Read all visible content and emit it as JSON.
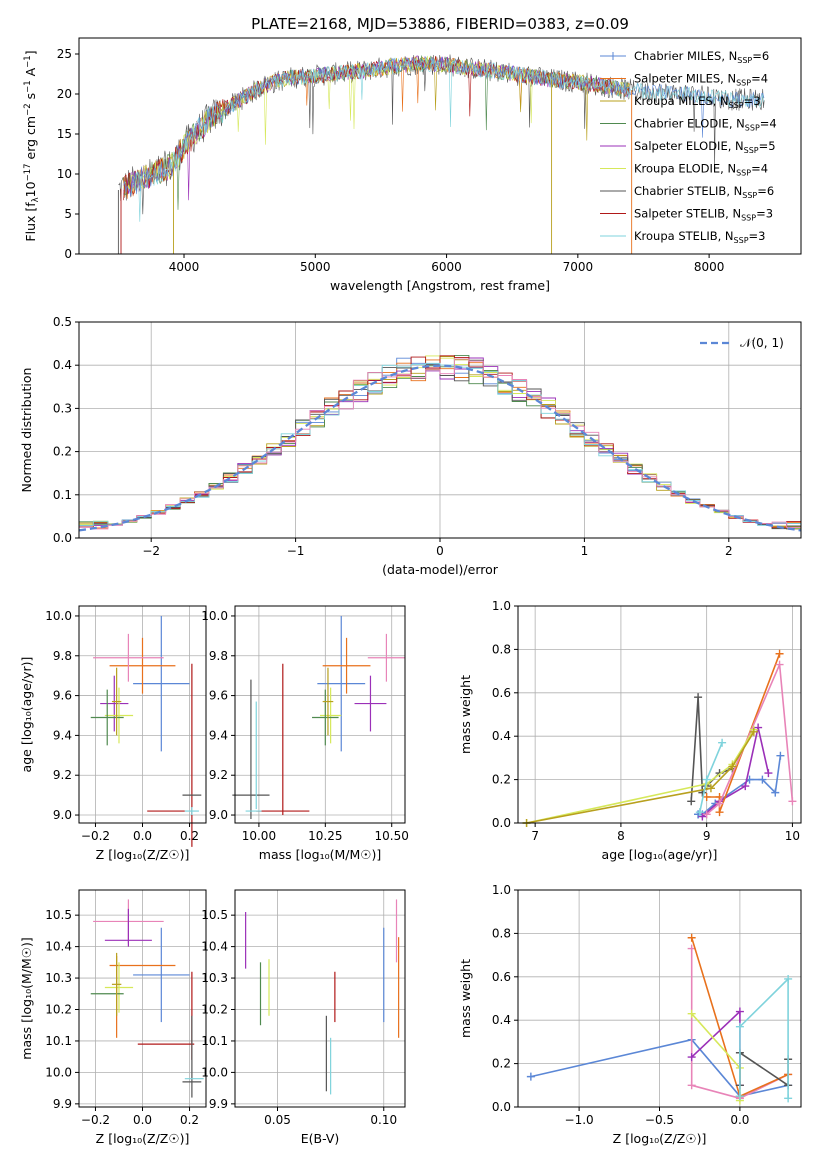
{
  "colors": {
    "Chabrier MILES": "#5b87d6",
    "Salpeter MILES": "#e8711c",
    "Kroupa MILES": "#b8a01e",
    "Chabrier ELODIE": "#4f8a4f",
    "Salpeter ELODIE": "#9b30b8",
    "Kroupa ELODIE": "#d6e85a",
    "Chabrier STELIB": "#555555",
    "Salpeter STELIB": "#b01818",
    "Kroupa STELIB": "#7fd3dc",
    "pink": "#e884b8",
    "normal": "#5b87d6"
  },
  "chart_data": [
    {
      "type": "line",
      "id": "spectrum",
      "title": "PLATE=2168, MJD=53886, FIBERID=0383, z=0.09",
      "xlabel": "wavelength [Angstrom, rest frame]",
      "ylabel_parts": [
        "Flux [f",
        "λ",
        "10",
        "−17",
        " erg cm",
        "−2",
        " s",
        "−1",
        " A",
        "−1",
        "]"
      ],
      "xlim": [
        3200,
        8700
      ],
      "ylim": [
        0,
        27
      ],
      "xticks": [
        4000,
        5000,
        6000,
        7000,
        8000
      ],
      "yticks": [
        0,
        5,
        10,
        15,
        20,
        25
      ],
      "continuum": [
        [
          3500,
          8
        ],
        [
          3700,
          9.5
        ],
        [
          3900,
          11
        ],
        [
          4000,
          13.5
        ],
        [
          4200,
          17
        ],
        [
          4400,
          19
        ],
        [
          4600,
          21
        ],
        [
          4800,
          22
        ],
        [
          5000,
          22.3
        ],
        [
          5200,
          22.6
        ],
        [
          5400,
          23
        ],
        [
          5600,
          23.5
        ],
        [
          5800,
          23.8
        ],
        [
          6000,
          23.7
        ],
        [
          6200,
          23.2
        ],
        [
          6400,
          22.8
        ],
        [
          6600,
          22.3
        ],
        [
          6800,
          21.8
        ],
        [
          7000,
          21.5
        ],
        [
          7200,
          21
        ],
        [
          7400,
          20.5
        ],
        [
          7600,
          20.2
        ],
        [
          7800,
          20
        ],
        [
          8000,
          19.6
        ],
        [
          8200,
          19.3
        ],
        [
          8400,
          19.3
        ]
      ],
      "legend": [
        {
          "name": "Chabrier MILES",
          "n": "6"
        },
        {
          "name": "Salpeter MILES",
          "n": "4"
        },
        {
          "name": "Kroupa MILES",
          "n": "3"
        },
        {
          "name": "Chabrier ELODIE",
          "n": "4"
        },
        {
          "name": "Salpeter ELODIE",
          "n": "5"
        },
        {
          "name": "Kroupa ELODIE",
          "n": "4"
        },
        {
          "name": "Chabrier STELIB",
          "n": "6"
        },
        {
          "name": "Salpeter STELIB",
          "n": "3"
        },
        {
          "name": "Kroupa STELIB",
          "n": "3"
        }
      ]
    },
    {
      "type": "bar",
      "id": "residuals",
      "xlabel": "(data-model)/error",
      "ylabel": "Normed distribution",
      "xlim": [
        -2.5,
        2.5
      ],
      "ylim": [
        0,
        0.5
      ],
      "xticks": [
        -2,
        -1,
        0,
        1,
        2
      ],
      "xtick_labels": [
        "−2",
        "−1",
        "0",
        "1",
        "2"
      ],
      "yticks": [
        0.0,
        0.1,
        0.2,
        0.3,
        0.4,
        0.5
      ],
      "ytick_labels": [
        "0.0",
        "0.1",
        "0.2",
        "0.3",
        "0.4",
        "0.5"
      ],
      "bin_width": 0.1,
      "legend_label": "𝒩(0, 1)"
    },
    {
      "type": "scatter",
      "id": "age-vs-Z",
      "xlabel": "Z [log₁₀(Z/Z☉)]",
      "ylabel": "age  [log₁₀(age/yr)]",
      "xlim": [
        -0.27,
        0.27
      ],
      "ylim": [
        8.96,
        10.05
      ],
      "xticks": [
        -0.2,
        0.0,
        0.2
      ],
      "xtick_labels": [
        "−0.2",
        "0.0",
        "0.2"
      ],
      "yticks": [
        9.0,
        9.2,
        9.4,
        9.6,
        9.8,
        10.0
      ],
      "ytick_labels": [
        "9.0",
        "9.2",
        "9.4",
        "9.6",
        "9.8",
        "10.0"
      ],
      "points": [
        {
          "c": "Chabrier MILES",
          "x": 0.08,
          "y": 9.66,
          "xerr": 0.12,
          "yerr": 0.34
        },
        {
          "c": "Salpeter MILES",
          "x": 0.0,
          "y": 9.75,
          "xerr": 0.14,
          "yerr": 0.14
        },
        {
          "c": "pink",
          "x": -0.06,
          "y": 9.79,
          "xerr": 0.15,
          "yerr": 0.12
        },
        {
          "c": "Salpeter ELODIE",
          "x": -0.12,
          "y": 9.56,
          "xerr": 0.06,
          "yerr": 0.14
        },
        {
          "c": "Kroupa ELODIE",
          "x": -0.1,
          "y": 9.5,
          "xerr": 0.06,
          "yerr": 0.14
        },
        {
          "c": "Chabrier ELODIE",
          "x": -0.15,
          "y": 9.49,
          "xerr": 0.07,
          "yerr": 0.14
        },
        {
          "c": "Kroupa MILES",
          "x": -0.11,
          "y": 9.57,
          "xerr": 0.02,
          "yerr": 0.17
        },
        {
          "c": "Salpeter STELIB",
          "x": 0.1,
          "y": 9.02,
          "xerr": 0.08,
          "yerr": 0.0
        },
        {
          "c": "Salpeter STELIB",
          "x": 0.21,
          "y": 9.3,
          "xerr": 0.0,
          "yerr": 0.46
        },
        {
          "c": "Chabrier STELIB",
          "x": 0.21,
          "y": 9.1,
          "xerr": 0.04,
          "yerr": 0.0
        },
        {
          "c": "Kroupa STELIB",
          "x": 0.21,
          "y": 9.02,
          "xerr": 0.03,
          "yerr": 0.02
        }
      ]
    },
    {
      "type": "scatter",
      "id": "age-vs-mass",
      "xlabel": "mass [log₁₀(M/M☉)]",
      "xlim": [
        9.91,
        10.55
      ],
      "ylim": [
        8.96,
        10.05
      ],
      "xticks": [
        10.0,
        10.25,
        10.5
      ],
      "xtick_labels": [
        "10.00",
        "10.25",
        "10.50"
      ],
      "yticks": [
        9.0,
        9.2,
        9.4,
        9.6,
        9.8,
        10.0
      ],
      "ytick_labels": [
        "9.0",
        "9.2",
        "9.4",
        "9.6",
        "9.8",
        "10.0"
      ],
      "points": [
        {
          "c": "Chabrier MILES",
          "x": 10.31,
          "y": 9.66,
          "xerr": 0.09,
          "yerr": 0.34
        },
        {
          "c": "Salpeter MILES",
          "x": 10.33,
          "y": 9.75,
          "xerr": 0.09,
          "yerr": 0.14
        },
        {
          "c": "pink",
          "x": 10.48,
          "y": 9.79,
          "xerr": 0.07,
          "yerr": 0.12
        },
        {
          "c": "Salpeter ELODIE",
          "x": 10.42,
          "y": 9.56,
          "xerr": 0.06,
          "yerr": 0.14
        },
        {
          "c": "Kroupa ELODIE",
          "x": 10.27,
          "y": 9.5,
          "xerr": 0.04,
          "yerr": 0.14
        },
        {
          "c": "Chabrier ELODIE",
          "x": 10.25,
          "y": 9.49,
          "xerr": 0.05,
          "yerr": 0.14
        },
        {
          "c": "Kroupa MILES",
          "x": 10.26,
          "y": 9.57,
          "xerr": 0.02,
          "yerr": 0.17
        },
        {
          "c": "Salpeter STELIB",
          "x": 10.09,
          "y": 9.02,
          "xerr": 0.1,
          "yerr": 0.0
        },
        {
          "c": "Salpeter STELIB",
          "x": 10.09,
          "y": 9.38,
          "xerr": 0.0,
          "yerr": 0.38
        },
        {
          "c": "Chabrier STELIB",
          "x": 9.97,
          "y": 9.1,
          "xerr": 0.07,
          "yerr": 0.0
        },
        {
          "c": "Chabrier STELIB",
          "x": 9.97,
          "y": 9.33,
          "xerr": 0.0,
          "yerr": 0.35
        },
        {
          "c": "Kroupa STELIB",
          "x": 9.98,
          "y": 9.02,
          "xerr": 0.03,
          "yerr": 0.0
        },
        {
          "c": "Kroupa STELIB",
          "x": 9.99,
          "y": 9.3,
          "xerr": 0.0,
          "yerr": 0.27
        }
      ]
    },
    {
      "type": "line",
      "id": "weight-vs-age",
      "xlabel": "age  [log₁₀(age/yr)]",
      "ylabel": "mass weight",
      "xlim": [
        6.8,
        10.1
      ],
      "ylim": [
        0,
        1
      ],
      "xticks": [
        7,
        8,
        9,
        10
      ],
      "xtick_labels": [
        "7",
        "8",
        "9",
        "10"
      ],
      "yticks": [
        0.0,
        0.2,
        0.4,
        0.6,
        0.8,
        1.0
      ],
      "ytick_labels": [
        "0.0",
        "0.2",
        "0.4",
        "0.6",
        "0.8",
        "1.0"
      ],
      "series": [
        {
          "c": "Chabrier STELIB",
          "x": [
            8.82,
            8.9,
            8.95,
            9.0,
            9.15,
            9.3
          ],
          "y": [
            0.1,
            0.58,
            0.14,
            0.17,
            0.23,
            0.25
          ]
        },
        {
          "c": "Chabrier MILES",
          "x": 8.9,
          "y": 0.04
        },
        {
          "c": "Chabrier MILES",
          "x": [
            8.9,
            8.95,
            9.1,
            9.5,
            9.65,
            9.8,
            9.86
          ],
          "y": [
            0.04,
            0.04,
            0.09,
            0.2,
            0.2,
            0.14,
            0.31
          ]
        },
        {
          "c": "Salpeter ELODIE",
          "x": [
            8.95,
            9.15,
            9.45,
            9.6,
            9.72
          ],
          "y": [
            0.03,
            0.1,
            0.17,
            0.44,
            0.23
          ]
        },
        {
          "c": "Salpeter MILES",
          "x": [
            9.0,
            9.15,
            9.15,
            9.85
          ],
          "y": [
            0.12,
            0.12,
            0.05,
            0.78
          ]
        },
        {
          "c": "pink",
          "x": [
            9.0,
            9.15,
            9.85,
            10.0
          ],
          "y": [
            0.04,
            0.09,
            0.73,
            0.1
          ]
        },
        {
          "c": "Kroupa ELODIE",
          "x": [
            6.9,
            9.0,
            9.3,
            9.55
          ],
          "y": [
            0.0,
            0.18,
            0.27,
            0.43
          ]
        },
        {
          "c": "Kroupa MILES",
          "x": [
            6.9,
            9.05,
            9.3,
            9.55
          ],
          "y": [
            0.0,
            0.16,
            0.26,
            0.42
          ]
        },
        {
          "c": "Kroupa STELIB",
          "x": [
            8.92,
            9.0,
            9.18
          ],
          "y": [
            0.05,
            0.2,
            0.37
          ]
        }
      ]
    },
    {
      "type": "scatter",
      "id": "mass-vs-Z",
      "xlabel": "Z [log₁₀(Z/Z☉)]",
      "ylabel": "mass [log₁₀(M/M☉)]",
      "xlim": [
        -0.27,
        0.27
      ],
      "ylim": [
        9.89,
        10.58
      ],
      "xticks": [
        -0.2,
        0.0,
        0.2
      ],
      "xtick_labels": [
        "−0.2",
        "0.0",
        "0.2"
      ],
      "yticks": [
        9.9,
        10.0,
        10.1,
        10.2,
        10.3,
        10.4,
        10.5
      ],
      "ytick_labels": [
        "9.9",
        "10.0",
        "10.1",
        "10.2",
        "10.3",
        "10.4",
        "10.5"
      ],
      "points": [
        {
          "c": "Chabrier MILES",
          "x": 0.08,
          "y": 10.31,
          "xerr": 0.12,
          "yerr": 0.15
        },
        {
          "c": "Salpeter MILES",
          "x": 0.0,
          "y": 10.34,
          "xerr": 0.14,
          "yerr": 0.0
        },
        {
          "c": "Salpeter MILES",
          "x": -0.11,
          "y": 10.24,
          "xerr": 0.0,
          "yerr": 0.13
        },
        {
          "c": "pink",
          "x": -0.06,
          "y": 10.48,
          "xerr": 0.15,
          "yerr": 0.07
        },
        {
          "c": "Salpeter ELODIE",
          "x": -0.06,
          "y": 10.42,
          "xerr": 0.1,
          "yerr": 0.0
        },
        {
          "c": "Salpeter ELODIE",
          "x": -0.06,
          "y": 10.46,
          "xerr": 0.0,
          "yerr": 0.06
        },
        {
          "c": "Kroupa ELODIE",
          "x": -0.1,
          "y": 10.27,
          "xerr": 0.06,
          "yerr": 0.08
        },
        {
          "c": "Chabrier ELODIE",
          "x": -0.15,
          "y": 10.25,
          "xerr": 0.07,
          "yerr": 0.0
        },
        {
          "c": "Kroupa MILES",
          "x": -0.11,
          "y": 10.28,
          "xerr": 0.02,
          "yerr": 0.1
        },
        {
          "c": "Salpeter STELIB",
          "x": 0.1,
          "y": 10.09,
          "xerr": 0.12,
          "yerr": 0.0
        },
        {
          "c": "Salpeter STELIB",
          "x": 0.21,
          "y": 10.18,
          "xerr": 0.0,
          "yerr": 0.14
        },
        {
          "c": "Chabrier STELIB",
          "x": 0.21,
          "y": 9.97,
          "xerr": 0.04,
          "yerr": 0.0
        },
        {
          "c": "Chabrier STELIB",
          "x": 0.21,
          "y": 10.05,
          "xerr": 0.0,
          "yerr": 0.13
        },
        {
          "c": "Kroupa STELIB",
          "x": 0.22,
          "y": 9.98,
          "xerr": 0.04,
          "yerr": 0.0
        }
      ]
    },
    {
      "type": "scatter",
      "id": "mass-vs-ebv",
      "xlabel": "E(B-V)",
      "xlim": [
        0.03,
        0.11
      ],
      "ylim": [
        9.89,
        10.58
      ],
      "xticks": [
        0.05,
        0.1
      ],
      "xtick_labels": [
        "0.05",
        "0.10"
      ],
      "yticks": [
        9.9,
        10.0,
        10.1,
        10.2,
        10.3,
        10.4,
        10.5
      ],
      "ytick_labels": [
        "9.9",
        "10.0",
        "10.1",
        "10.2",
        "10.3",
        "10.4",
        "10.5"
      ],
      "points": [
        {
          "c": "Salpeter ELODIE",
          "x": 0.035,
          "y": 10.42,
          "xerr": 0.0,
          "yerr": 0.09
        },
        {
          "c": "Chabrier ELODIE",
          "x": 0.042,
          "y": 10.25,
          "xerr": 0.0,
          "yerr": 0.1
        },
        {
          "c": "Kroupa ELODIE",
          "x": 0.046,
          "y": 10.27,
          "xerr": 0.0,
          "yerr": 0.09
        },
        {
          "c": "Chabrier STELIB",
          "x": 0.073,
          "y": 10.06,
          "xerr": 0.0,
          "yerr": 0.12
        },
        {
          "c": "Kroupa STELIB",
          "x": 0.075,
          "y": 10.02,
          "xerr": 0.0,
          "yerr": 0.09
        },
        {
          "c": "Salpeter STELIB",
          "x": 0.077,
          "y": 10.24,
          "xerr": 0.0,
          "yerr": 0.08
        },
        {
          "c": "Chabrier MILES",
          "x": 0.1,
          "y": 10.31,
          "xerr": 0.0,
          "yerr": 0.15
        },
        {
          "c": "pink",
          "x": 0.106,
          "y": 10.45,
          "xerr": 0.0,
          "yerr": 0.1
        },
        {
          "c": "Salpeter MILES",
          "x": 0.107,
          "y": 10.27,
          "xerr": 0.0,
          "yerr": 0.16
        }
      ]
    },
    {
      "type": "line",
      "id": "weight-vs-Z",
      "xlabel": "Z [log₁₀(Z/Z☉)]",
      "ylabel": "mass weight",
      "xlim": [
        -1.38,
        0.38
      ],
      "ylim": [
        0,
        1
      ],
      "xticks": [
        -1.0,
        -0.5,
        0.0
      ],
      "xtick_labels": [
        "−1.0",
        "−0.5",
        "0.0"
      ],
      "yticks": [
        0.0,
        0.2,
        0.4,
        0.6,
        0.8,
        1.0
      ],
      "ytick_labels": [
        "0.0",
        "0.2",
        "0.4",
        "0.6",
        "0.8",
        "1.0"
      ],
      "series": [
        {
          "c": "Chabrier MILES",
          "x": [
            -1.3,
            -0.3,
            0.0,
            0.3
          ],
          "y": [
            0.14,
            0.31,
            0.05,
            0.1
          ]
        },
        {
          "c": "pink",
          "x": [
            -0.3,
            -0.3,
            0.0,
            0.3
          ],
          "y": [
            0.73,
            0.1,
            0.04,
            0.15
          ]
        },
        {
          "c": "Salpeter MILES",
          "x": [
            -0.3,
            0.0,
            0.3
          ],
          "y": [
            0.78,
            0.05,
            0.15
          ]
        },
        {
          "c": "Salpeter ELODIE",
          "x": [
            -0.3,
            0.0,
            0.0
          ],
          "y": [
            0.23,
            0.44,
            0.1
          ]
        },
        {
          "c": "Kroupa ELODIE",
          "x": [
            -0.3,
            0.0,
            0.0
          ],
          "y": [
            0.43,
            0.18,
            0.03
          ]
        },
        {
          "c": "Chabrier STELIB",
          "x": [
            0.0,
            0.0,
            0.3,
            0.3
          ],
          "y": [
            0.1,
            0.25,
            0.1,
            0.22
          ]
        },
        {
          "c": "Kroupa STELIB",
          "x": [
            0.0,
            0.0,
            0.3,
            0.3
          ],
          "y": [
            0.05,
            0.37,
            0.59,
            0.04
          ]
        }
      ]
    }
  ]
}
